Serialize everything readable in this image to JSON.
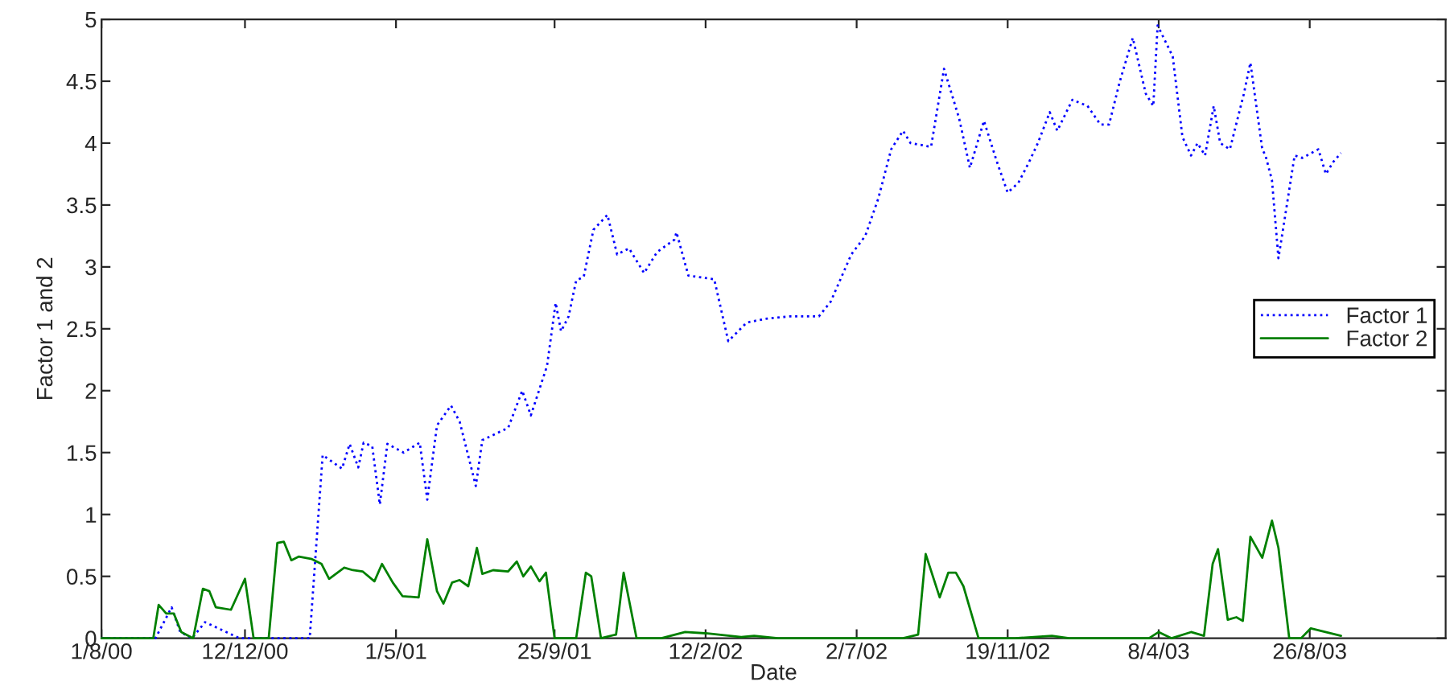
{
  "chart_data": {
    "type": "line",
    "xlabel": "Date",
    "ylabel": "Factor 1 and 2",
    "xlim": [
      "2000-08-01",
      "2003-12-30"
    ],
    "ylim": [
      0,
      5
    ],
    "xticks": [
      {
        "value": "2000-08-01",
        "label": "1/8/00"
      },
      {
        "value": "2000-12-12",
        "label": "12/12/00"
      },
      {
        "value": "2001-05-01",
        "label": "1/5/01"
      },
      {
        "value": "2001-09-25",
        "label": "25/9/01"
      },
      {
        "value": "2002-02-12",
        "label": "12/2/02"
      },
      {
        "value": "2002-07-02",
        "label": "2/7/02"
      },
      {
        "value": "2002-11-19",
        "label": "19/11/02"
      },
      {
        "value": "2003-04-08",
        "label": "8/4/03"
      },
      {
        "value": "2003-08-26",
        "label": "26/8/03"
      }
    ],
    "yticks": [
      0,
      0.5,
      1,
      1.5,
      2,
      2.5,
      3,
      3.5,
      4,
      4.5,
      5
    ],
    "legend": "right",
    "marker": "none",
    "series": [
      {
        "name": "Factor 1",
        "color": "#0000ff",
        "line_style": "dotted",
        "x": [
          "2000-08-01",
          "2000-09-20",
          "2000-10-05",
          "2000-10-13",
          "2000-10-24",
          "2000-11-05",
          "2000-12-07",
          "2001-02-10",
          "2001-02-22",
          "2001-03-12",
          "2001-03-19",
          "2001-03-27",
          "2001-04-01",
          "2001-04-09",
          "2001-04-16",
          "2001-04-23",
          "2001-05-08",
          "2001-05-23",
          "2001-05-30",
          "2001-06-08",
          "2001-06-21",
          "2001-06-29",
          "2001-07-14",
          "2001-07-20",
          "2001-08-13",
          "2001-08-26",
          "2001-09-03",
          "2001-09-18",
          "2001-09-26",
          "2001-10-01",
          "2001-10-08",
          "2001-10-15",
          "2001-10-22",
          "2001-10-31",
          "2001-11-13",
          "2001-11-22",
          "2001-12-03",
          "2001-12-17",
          "2001-12-29",
          "2002-01-14",
          "2002-01-16",
          "2002-01-27",
          "2002-02-20",
          "2002-03-05",
          "2002-03-22",
          "2002-04-08",
          "2002-05-01",
          "2002-05-28",
          "2002-06-08",
          "2002-06-27",
          "2002-07-10",
          "2002-07-22",
          "2002-08-03",
          "2002-08-14",
          "2002-08-21",
          "2002-09-09",
          "2002-09-21",
          "2002-10-05",
          "2002-10-15",
          "2002-10-28",
          "2002-11-09",
          "2002-11-19",
          "2002-11-29",
          "2002-12-09",
          "2002-12-17",
          "2002-12-28",
          "2003-01-04",
          "2003-01-18",
          "2003-02-01",
          "2003-02-13",
          "2003-02-21",
          "2003-03-03",
          "2003-03-15",
          "2003-03-27",
          "2003-04-03",
          "2003-04-07",
          "2003-04-21",
          "2003-04-30",
          "2003-05-08",
          "2003-05-14",
          "2003-05-21",
          "2003-05-29",
          "2003-06-04",
          "2003-06-13",
          "2003-06-26",
          "2003-07-02",
          "2003-07-13",
          "2003-07-16",
          "2003-07-22",
          "2003-07-28",
          "2003-08-03",
          "2003-08-12",
          "2003-08-19",
          "2003-09-03",
          "2003-09-10",
          "2003-09-17",
          "2003-09-24"
        ],
        "values": [
          0,
          0,
          0.25,
          0.05,
          0,
          0.13,
          0,
          0,
          1.48,
          1.37,
          1.57,
          1.38,
          1.58,
          1.55,
          1.08,
          1.57,
          1.5,
          1.58,
          1.12,
          1.72,
          1.88,
          1.75,
          1.23,
          1.6,
          1.7,
          2.0,
          1.8,
          2.2,
          2.71,
          2.48,
          2.6,
          2.89,
          2.92,
          3.3,
          3.42,
          3.1,
          3.15,
          2.95,
          3.12,
          3.22,
          3.28,
          2.93,
          2.9,
          2.4,
          2.55,
          2.58,
          2.6,
          2.6,
          2.72,
          3.1,
          3.25,
          3.55,
          3.95,
          4.1,
          4.0,
          3.97,
          4.6,
          4.2,
          3.8,
          4.18,
          3.85,
          3.6,
          3.68,
          3.85,
          4.0,
          4.25,
          4.1,
          4.35,
          4.3,
          4.15,
          4.15,
          4.5,
          4.85,
          4.4,
          4.3,
          4.95,
          4.7,
          4.05,
          3.9,
          4.0,
          3.9,
          4.3,
          4.0,
          3.95,
          4.4,
          4.65,
          3.95,
          3.9,
          3.7,
          3.07,
          3.4,
          3.9,
          3.88,
          3.95,
          3.75,
          3.85,
          3.92
        ]
      },
      {
        "name": "Factor 2",
        "color": "#008000",
        "line_style": "solid",
        "x": [
          "2000-08-01",
          "2000-09-18",
          "2000-09-23",
          "2000-09-30",
          "2000-10-07",
          "2000-10-14",
          "2000-10-25",
          "2000-11-03",
          "2000-11-09",
          "2000-11-15",
          "2000-11-29",
          "2000-12-12",
          "2000-12-20",
          "2001-01-03",
          "2001-01-11",
          "2001-01-17",
          "2001-01-24",
          "2001-01-31",
          "2001-02-12",
          "2001-02-21",
          "2001-02-28",
          "2001-03-14",
          "2001-03-22",
          "2001-03-31",
          "2001-04-11",
          "2001-04-18",
          "2001-04-28",
          "2001-05-07",
          "2001-05-22",
          "2001-05-30",
          "2001-06-08",
          "2001-06-14",
          "2001-06-22",
          "2001-06-29",
          "2001-07-07",
          "2001-07-15",
          "2001-07-20",
          "2001-07-30",
          "2001-08-13",
          "2001-08-21",
          "2001-08-27",
          "2001-09-03",
          "2001-09-11",
          "2001-09-17",
          "2001-09-25",
          "2001-10-15",
          "2001-10-24",
          "2001-10-29",
          "2001-11-07",
          "2001-11-21",
          "2001-11-28",
          "2001-12-10",
          "2002-01-02",
          "2002-01-24",
          "2002-02-12",
          "2002-03-17",
          "2002-03-29",
          "2002-04-20",
          "2002-08-14",
          "2002-08-28",
          "2002-09-04",
          "2002-09-17",
          "2002-09-25",
          "2002-10-02",
          "2002-10-09",
          "2002-10-23",
          "2002-11-26",
          "2002-12-30",
          "2003-01-15",
          "2003-03-30",
          "2003-04-08",
          "2003-04-20",
          "2003-05-08",
          "2003-05-20",
          "2003-05-28",
          "2003-06-02",
          "2003-06-11",
          "2003-06-19",
          "2003-06-25",
          "2003-07-02",
          "2003-07-13",
          "2003-07-22",
          "2003-07-28",
          "2003-08-07",
          "2003-08-18",
          "2003-08-27",
          "2003-09-24"
        ],
        "values": [
          0,
          0,
          0.27,
          0.2,
          0.2,
          0.05,
          0,
          0.4,
          0.38,
          0.25,
          0.23,
          0.48,
          0,
          0,
          0.77,
          0.78,
          0.63,
          0.66,
          0.64,
          0.6,
          0.48,
          0.57,
          0.55,
          0.54,
          0.46,
          0.6,
          0.45,
          0.34,
          0.33,
          0.8,
          0.38,
          0.28,
          0.45,
          0.47,
          0.42,
          0.73,
          0.52,
          0.55,
          0.54,
          0.62,
          0.5,
          0.58,
          0.46,
          0.53,
          0,
          0,
          0.53,
          0.5,
          0,
          0.03,
          0.53,
          0,
          0,
          0.05,
          0.04,
          0.01,
          0.02,
          0,
          0,
          0.03,
          0.68,
          0.33,
          0.53,
          0.53,
          0.42,
          0,
          0,
          0.02,
          0,
          0,
          0.05,
          0,
          0.05,
          0.02,
          0.6,
          0.72,
          0.15,
          0.17,
          0.14,
          0.82,
          0.65,
          0.95,
          0.73,
          0,
          0,
          0.08,
          0.02
        ]
      }
    ]
  }
}
